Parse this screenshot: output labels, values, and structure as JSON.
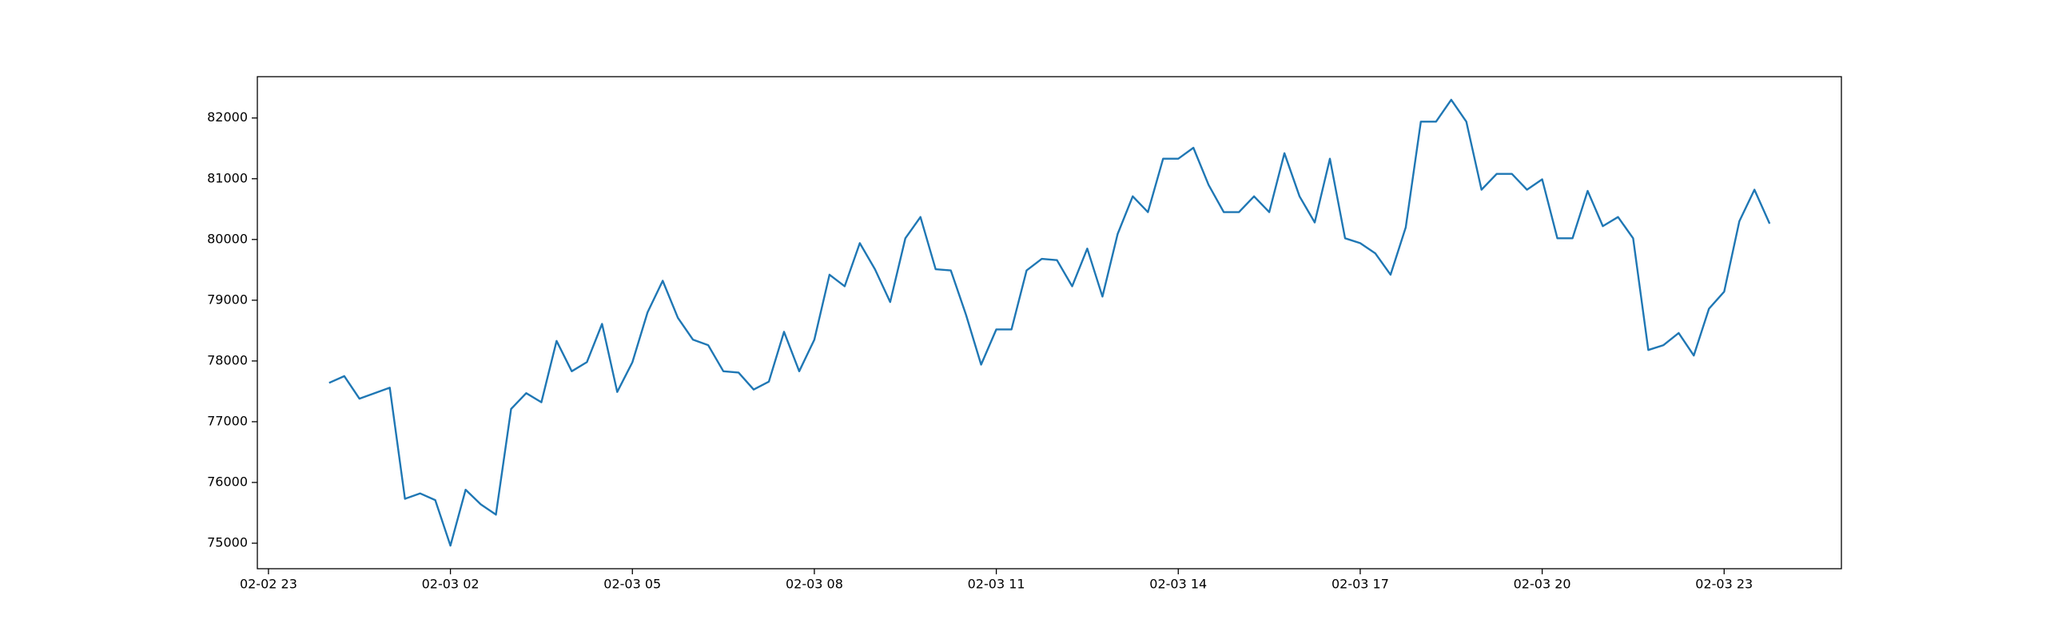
{
  "chart_data": {
    "type": "line",
    "color": "#1f77b4",
    "x": [
      "02-03 00:00",
      "02-03 00:15",
      "02-03 00:30",
      "02-03 00:45",
      "02-03 01:00",
      "02-03 01:15",
      "02-03 01:30",
      "02-03 01:45",
      "02-03 02:00",
      "02-03 02:15",
      "02-03 02:30",
      "02-03 02:45",
      "02-03 03:00",
      "02-03 03:15",
      "02-03 03:30",
      "02-03 03:45",
      "02-03 04:00",
      "02-03 04:15",
      "02-03 04:30",
      "02-03 04:45",
      "02-03 05:00",
      "02-03 05:15",
      "02-03 05:30",
      "02-03 05:45",
      "02-03 06:00",
      "02-03 06:15",
      "02-03 06:30",
      "02-03 06:45",
      "02-03 07:00",
      "02-03 07:15",
      "02-03 07:30",
      "02-03 07:45",
      "02-03 08:00",
      "02-03 08:15",
      "02-03 08:30",
      "02-03 08:45",
      "02-03 09:00",
      "02-03 09:15",
      "02-03 09:30",
      "02-03 09:45",
      "02-03 10:00",
      "02-03 10:15",
      "02-03 10:30",
      "02-03 10:45",
      "02-03 11:00",
      "02-03 11:15",
      "02-03 11:30",
      "02-03 11:45",
      "02-03 12:00",
      "02-03 12:15",
      "02-03 12:30",
      "02-03 12:45",
      "02-03 13:00",
      "02-03 13:15",
      "02-03 13:30",
      "02-03 13:45",
      "02-03 14:00",
      "02-03 14:15",
      "02-03 14:30",
      "02-03 14:45",
      "02-03 15:00",
      "02-03 15:15",
      "02-03 15:30",
      "02-03 15:45",
      "02-03 16:00",
      "02-03 16:15",
      "02-03 16:30",
      "02-03 16:45",
      "02-03 17:00",
      "02-03 17:15",
      "02-03 17:30",
      "02-03 17:45",
      "02-03 18:00",
      "02-03 18:15",
      "02-03 18:30",
      "02-03 18:45",
      "02-03 19:00",
      "02-03 19:15",
      "02-03 19:30",
      "02-03 19:45",
      "02-03 20:00",
      "02-03 20:15",
      "02-03 20:30",
      "02-03 20:45",
      "02-03 21:00",
      "02-03 21:15",
      "02-03 21:30",
      "02-03 21:45",
      "02-03 22:00",
      "02-03 22:15",
      "02-03 22:30",
      "02-03 22:45",
      "02-03 23:00",
      "02-03 23:15",
      "02-03 23:30",
      "02-03 23:45"
    ],
    "values": [
      77640,
      77750,
      77380,
      77470,
      77560,
      75730,
      75820,
      75710,
      74960,
      75880,
      75640,
      75470,
      77210,
      77470,
      77320,
      78330,
      77830,
      77980,
      78610,
      77490,
      77980,
      78800,
      79320,
      78710,
      78350,
      78260,
      77830,
      77810,
      77530,
      77660,
      78480,
      77830,
      78350,
      79420,
      79230,
      79940,
      79510,
      78970,
      80020,
      80370,
      79510,
      79490,
      78760,
      77940,
      78520,
      78520,
      79490,
      79680,
      79660,
      79230,
      79850,
      79060,
      80090,
      80710,
      80450,
      81330,
      81330,
      81510,
      80900,
      80450,
      80450,
      80710,
      80450,
      81420,
      80710,
      80280,
      81330,
      80020,
      79940,
      79770,
      79420,
      80200,
      81940,
      81940,
      82300,
      81940,
      80820,
      81080,
      81080,
      80820,
      80990,
      80020,
      80020,
      80800,
      80220,
      80370,
      80020,
      78180,
      78260,
      78460,
      78090,
      78860,
      79140,
      80300,
      80820,
      80260
    ],
    "xlim": [
      "02-02 22:49",
      "02-04 00:56"
    ],
    "xticks": [
      "02-02 23",
      "02-03 02",
      "02-03 05",
      "02-03 08",
      "02-03 11",
      "02-03 14",
      "02-03 17",
      "02-03 20",
      "02-03 23"
    ],
    "ylim": [
      74580,
      82680
    ],
    "yticks": [
      75000,
      76000,
      77000,
      78000,
      79000,
      80000,
      81000,
      82000
    ]
  }
}
